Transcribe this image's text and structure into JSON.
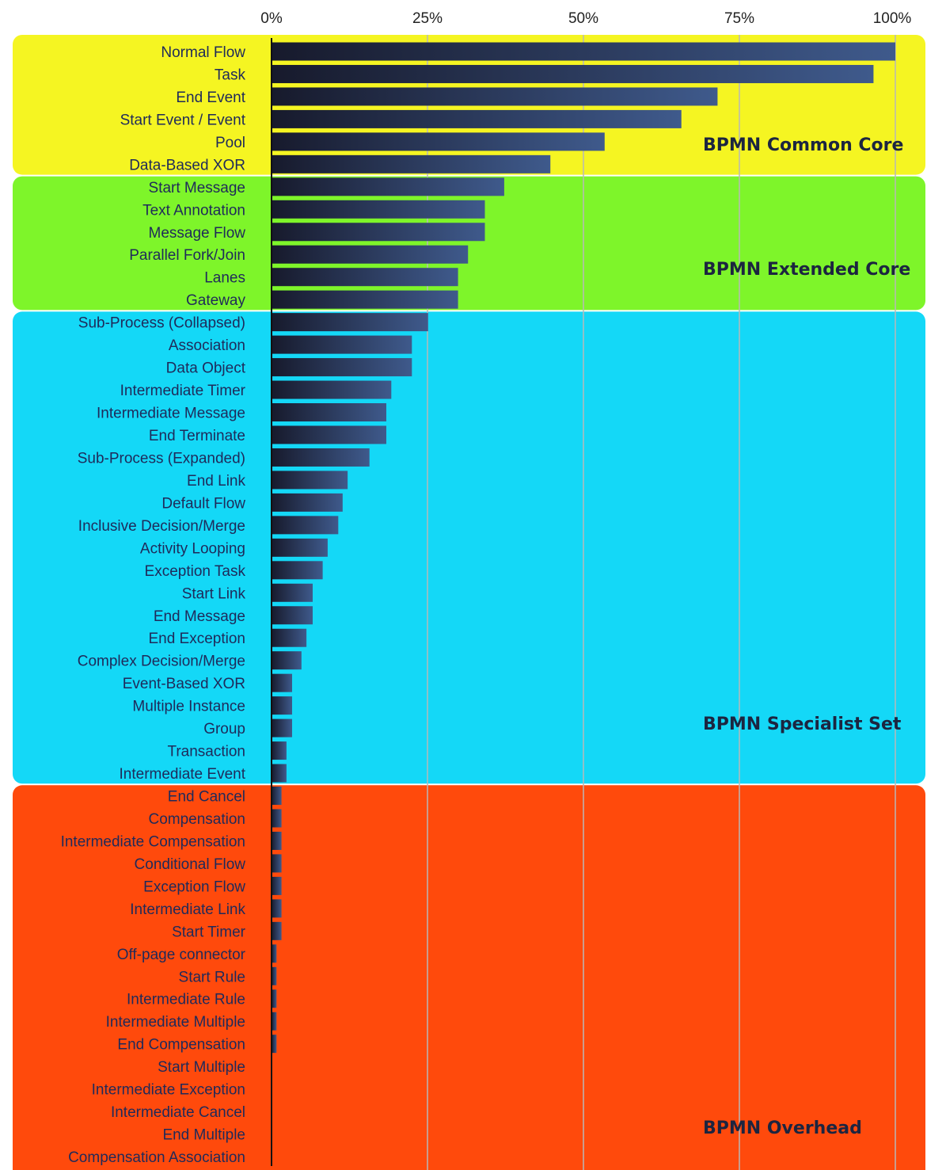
{
  "colors": {
    "common_core": "#f5f522",
    "extended_core": "#7ef52a",
    "specialist_set": "#14d8f7",
    "overhead": "#ff4a0c",
    "bar_dark": "#171a2c",
    "bar_light": "#3f5a8c",
    "gridline": "#b8b8b8"
  },
  "chart_data": {
    "type": "bar",
    "orientation": "horizontal",
    "x_tick_labels": [
      "0%",
      "25%",
      "50%",
      "75%",
      "100%"
    ],
    "xlim": [
      0,
      100
    ],
    "grid": true,
    "categories": [
      "Normal Flow",
      "Task",
      "End Event",
      "Start Event / Event",
      "Pool",
      "Data-Based XOR",
      "Start Message",
      "Text Annotation",
      "Message Flow",
      "Parallel Fork/Join",
      "Lanes",
      "Gateway",
      "Sub-Process (Collapsed)",
      "Association",
      "Data Object",
      "Intermediate Timer",
      "Intermediate Message",
      "End Terminate",
      "Sub-Process (Expanded)",
      "End Link",
      "Default Flow",
      "Inclusive Decision/Merge",
      "Activity Looping",
      "Exception Task",
      "Start Link",
      "End Message",
      "End Exception",
      "Complex Decision/Merge",
      "Event-Based XOR",
      "Multiple Instance",
      "Group",
      "Transaction",
      "Intermediate Event",
      "End Cancel",
      "Compensation",
      "Intermediate Compensation",
      "Conditional Flow",
      "Exception Flow",
      "Intermediate Link",
      "Start Timer",
      "Off-page connector",
      "Start Rule",
      "Intermediate Rule",
      "Intermediate Multiple",
      "End Compensation",
      "Start Multiple",
      "Intermediate Exception",
      "Intermediate Cancel",
      "End Multiple",
      "Compensation Association"
    ],
    "values": [
      100,
      96.5,
      71.5,
      65.7,
      53.4,
      44.7,
      37.3,
      34.2,
      34.2,
      31.5,
      29.9,
      29.9,
      25.1,
      22.5,
      22.5,
      19.2,
      18.4,
      18.4,
      15.7,
      12.2,
      11.4,
      10.7,
      9.0,
      8.2,
      6.6,
      6.6,
      5.6,
      4.8,
      3.3,
      3.3,
      3.3,
      2.4,
      2.4,
      1.6,
      1.6,
      1.6,
      1.6,
      1.6,
      1.6,
      1.6,
      0.8,
      0.8,
      0.8,
      0.8,
      0.8,
      0.1,
      0.1,
      0.1,
      0.1,
      0.1
    ],
    "groups": [
      {
        "label": "BPMN Common Core",
        "start": 0,
        "end": 5,
        "color_key": "common_core"
      },
      {
        "label": "BPMN Extended Core",
        "start": 6,
        "end": 11,
        "color_key": "extended_core"
      },
      {
        "label": "BPMN Specialist Set",
        "start": 12,
        "end": 32,
        "color_key": "specialist_set"
      },
      {
        "label": "BPMN Overhead",
        "start": 33,
        "end": 49,
        "color_key": "overhead"
      }
    ]
  }
}
